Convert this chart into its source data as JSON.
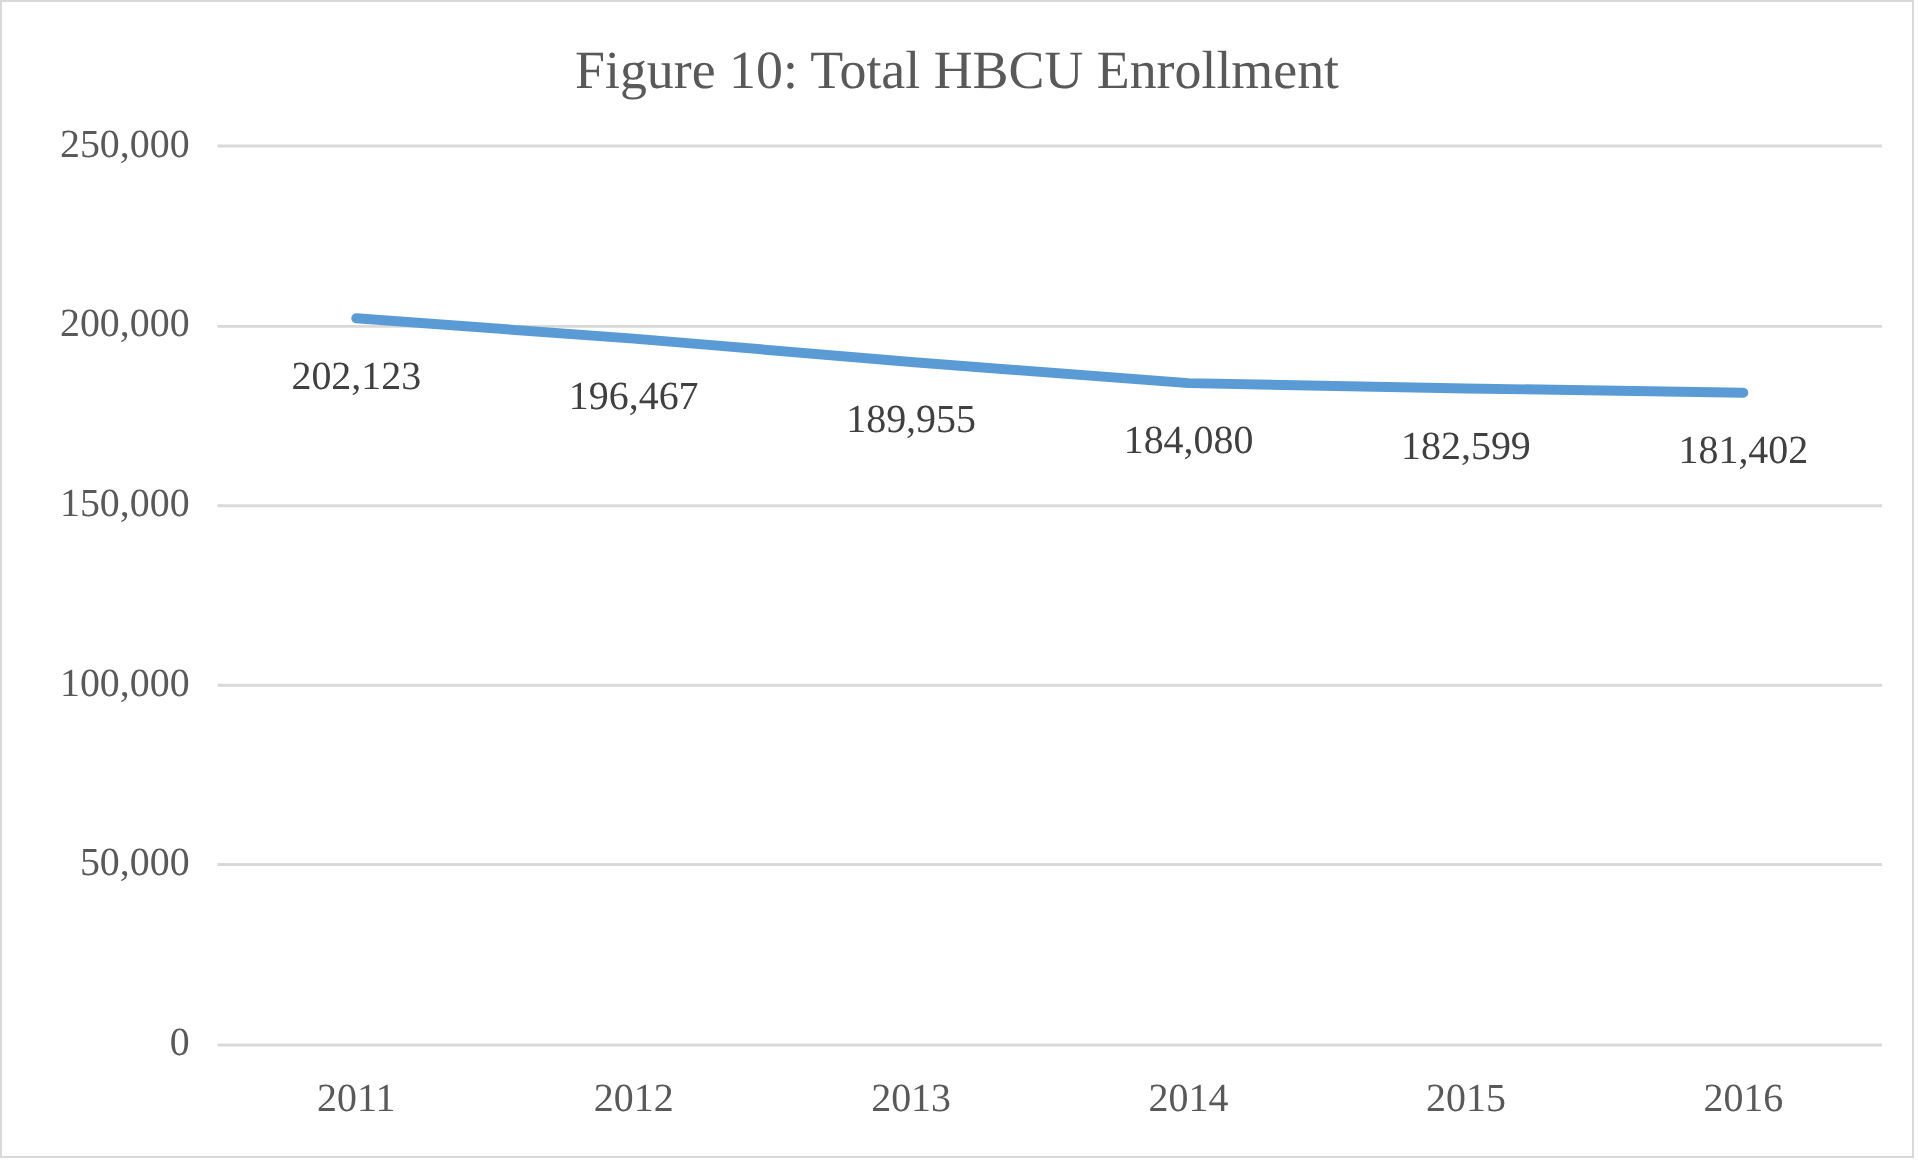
{
  "chart_data": {
    "type": "line",
    "title": "Figure 10: Total HBCU Enrollment",
    "categories": [
      "2011",
      "2012",
      "2013",
      "2014",
      "2015",
      "2016"
    ],
    "series": [
      {
        "color": "#5b9bd5",
        "values": [
          202123,
          196467,
          189955,
          184080,
          182599,
          181402
        ],
        "value_labels": [
          "202,123",
          "196,467",
          "189,955",
          "184,080",
          "182,599",
          "181,402"
        ]
      }
    ],
    "ylim": [
      0,
      250000
    ],
    "yticks": [
      0,
      {
        "value": 50000,
        "label": "50,000"
      },
      {
        "value": 100000,
        "label": "100,000"
      },
      {
        "value": 150000,
        "label": "150,000"
      },
      {
        "value": 200000,
        "label": "200,000"
      },
      {
        "value": 250000,
        "label": "250,000"
      }
    ],
    "grid": "y",
    "legend": false,
    "marker": "none",
    "line_style": "solid"
  }
}
